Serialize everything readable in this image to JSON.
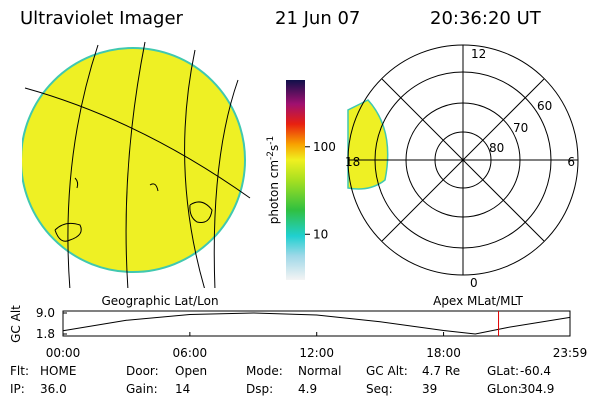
{
  "header": {
    "title": "Ultraviolet Imager",
    "date": "21 Jun 07",
    "time": "20:36:20 UT"
  },
  "colorbar": {
    "label": [
      "photon cm",
      "-2",
      "s",
      "-1"
    ],
    "log": true,
    "lim": [
      3,
      580
    ],
    "ticks": [
      10,
      100
    ]
  },
  "polar": {
    "mlt_labels": [
      "12",
      "18",
      "6",
      "0"
    ],
    "mlat_labels": [
      "60",
      "70",
      "80"
    ]
  },
  "panel_labels": [
    "Geographic Lat/Lon",
    "Apex MLat/MLT"
  ],
  "altitude": {
    "ylabel": "GC Alt",
    "ylim": [
      1.8,
      9.0
    ],
    "yticks": [
      1.8,
      {
        "value": 9.0,
        "label": "9.0"
      }
    ],
    "xlim": [
      0,
      23.98
    ],
    "xticks": [
      {
        "value": 0,
        "label": "00:00"
      },
      {
        "value": 6,
        "label": "06:00"
      },
      {
        "value": 12,
        "label": "12:00"
      },
      {
        "value": 18,
        "label": "18:00"
      },
      {
        "value": 23.98,
        "label": "23:59"
      }
    ],
    "x": [
      0,
      3,
      6,
      9,
      12,
      15,
      18,
      19.5,
      21,
      23.98
    ],
    "y": [
      2.9,
      6.5,
      8.5,
      9.0,
      8.3,
      6.0,
      3.0,
      1.8,
      4.0,
      7.5
    ],
    "marker_x": 20.6
  },
  "footer": [
    [
      [
        "Flt:",
        "HOME"
      ],
      [
        "Door:",
        "Open"
      ],
      [
        "Mode:",
        "Normal"
      ],
      [
        "GC Alt:",
        "4.7 Re"
      ],
      [
        "GLat:",
        "-60.4"
      ]
    ],
    [
      [
        "IP:",
        "36.0"
      ],
      [
        "Gain:",
        "14"
      ],
      [
        "Dsp:",
        "4.9"
      ],
      [
        "Seq:",
        "39"
      ],
      [
        "GLon:",
        "304.9"
      ]
    ]
  ]
}
